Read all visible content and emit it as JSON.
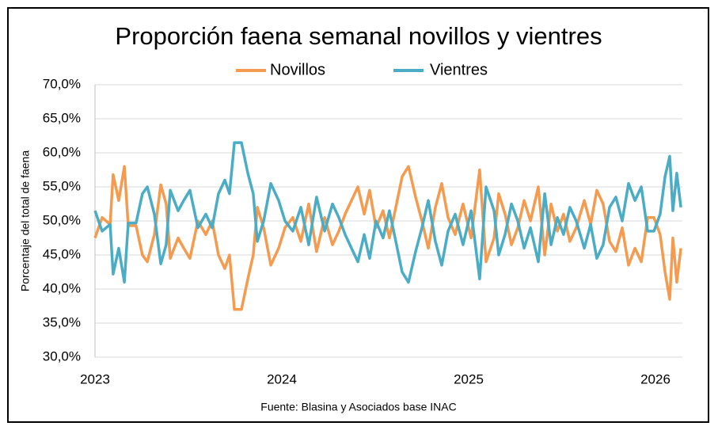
{
  "chart_data": {
    "type": "line",
    "title": "Proporción faena semanal novillos y vientres",
    "y_label": "Porcentaje del total de faena",
    "source": "Fuente: Blasina y Asociados base INAC",
    "legend": "top",
    "grid": true,
    "xlim": [
      2023,
      2026.144
    ],
    "xticks": [
      2023,
      2024,
      2025,
      2026
    ],
    "ylim": [
      30,
      70
    ],
    "yticks": [
      {
        "value": 30,
        "label": "30,0%"
      },
      {
        "value": 35,
        "label": "35,0%"
      },
      {
        "value": 40,
        "label": "40,0%"
      },
      {
        "value": 45,
        "label": "45,0%"
      },
      {
        "value": 50,
        "label": "50,0%"
      },
      {
        "value": 55,
        "label": "55,0%"
      },
      {
        "value": 60,
        "label": "60,0%"
      },
      {
        "value": 65,
        "label": "65,0%"
      },
      {
        "value": 70,
        "label": "70,0%"
      }
    ],
    "x": [
      2023,
      2023.038,
      2023.081,
      2023.097,
      2023.127,
      2023.157,
      2023.178,
      2023.22,
      2023.254,
      2023.28,
      2023.318,
      2023.352,
      2023.381,
      2023.403,
      2023.445,
      2023.475,
      2023.508,
      2023.551,
      2023.593,
      2023.627,
      2023.661,
      2023.695,
      2023.72,
      2023.746,
      2023.784,
      2023.818,
      2023.847,
      2023.869,
      2023.903,
      2023.941,
      2023.983,
      2024.017,
      2024.059,
      2024.102,
      2024.144,
      2024.186,
      2024.229,
      2024.271,
      2024.305,
      2024.339,
      2024.373,
      2024.407,
      2024.441,
      2024.47,
      2024.504,
      2024.542,
      2024.576,
      2024.61,
      2024.644,
      2024.678,
      2024.716,
      2024.75,
      2024.784,
      2024.822,
      2024.856,
      2024.89,
      2024.928,
      2024.97,
      2025.013,
      2025.059,
      2025.093,
      2025.136,
      2025.161,
      2025.195,
      2025.229,
      2025.263,
      2025.297,
      2025.331,
      2025.373,
      2025.407,
      2025.441,
      2025.475,
      2025.508,
      2025.542,
      2025.576,
      2025.619,
      2025.653,
      2025.686,
      2025.72,
      2025.754,
      2025.788,
      2025.822,
      2025.856,
      2025.89,
      2025.924,
      2025.958,
      2025.992,
      2026.025,
      2026.051,
      2026.076,
      2026.093,
      2026.114,
      2026.136
    ],
    "series": [
      {
        "name": "Novillos",
        "color": "#f49b4f",
        "values": [
          47.5,
          50.5,
          49.5,
          56.8,
          53,
          58,
          49.3,
          49.3,
          45,
          44,
          48,
          55.3,
          52.5,
          44.5,
          47.5,
          46,
          44.5,
          50,
          48,
          50,
          45,
          43,
          45,
          37,
          37,
          41.5,
          45,
          52,
          49,
          43.5,
          46,
          49,
          50.5,
          47,
          52.5,
          45.5,
          50.5,
          46.5,
          48.5,
          51,
          53,
          55,
          51,
          54.5,
          49,
          51.5,
          47.5,
          52,
          56.5,
          58,
          53.5,
          50,
          46,
          52,
          55.5,
          50.5,
          48,
          52.5,
          47.5,
          57.5,
          44,
          47.5,
          54,
          51,
          46.5,
          49,
          53,
          50,
          55,
          45,
          52.5,
          48.5,
          51,
          47,
          49,
          53,
          49.5,
          54.5,
          52.5,
          47,
          45.5,
          49,
          43.5,
          46,
          44,
          50.5,
          50.5,
          48,
          42.5,
          38.5,
          47.5,
          41,
          46
        ]
      },
      {
        "name": "Vientres",
        "color": "#4bacc6",
        "values": [
          51.5,
          48.5,
          49.5,
          42.2,
          46,
          41,
          49.7,
          49.7,
          54,
          55,
          51,
          43.7,
          46.5,
          54.5,
          51.5,
          53,
          54.5,
          49,
          51,
          49,
          54,
          56,
          54,
          61.5,
          61.5,
          57,
          54,
          47,
          50,
          55.5,
          53,
          50,
          48.5,
          52,
          46.5,
          53.5,
          48.5,
          52.5,
          50.5,
          48,
          46,
          44,
          48,
          44.5,
          50,
          47.5,
          51.5,
          47,
          42.5,
          41,
          45.5,
          49,
          53,
          47,
          43.5,
          48.5,
          51,
          46.5,
          51.5,
          41.5,
          55,
          51.5,
          45,
          48,
          52.5,
          50,
          46,
          49,
          44,
          54,
          46.5,
          50.5,
          48,
          52,
          50,
          46,
          49.5,
          44.5,
          46.5,
          52,
          53.5,
          50,
          55.5,
          53,
          55,
          48.5,
          48.5,
          51,
          56.5,
          59.5,
          51.5,
          57,
          52
        ]
      }
    ]
  }
}
